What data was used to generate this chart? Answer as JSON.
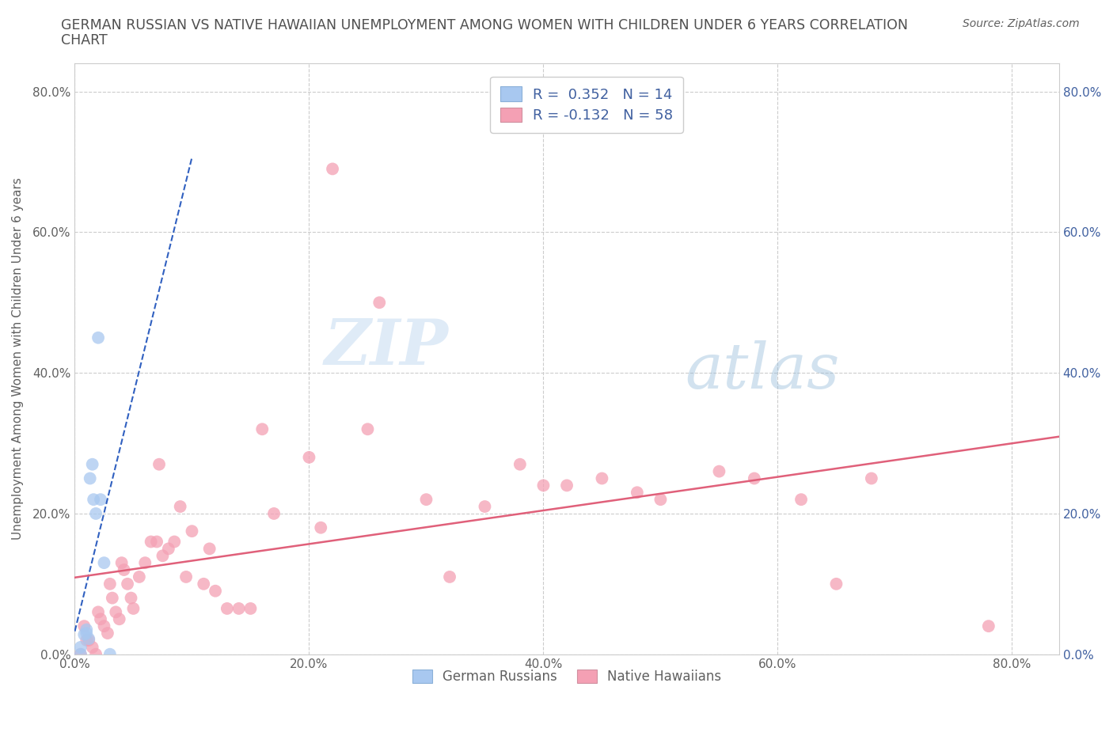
{
  "title_line1": "GERMAN RUSSIAN VS NATIVE HAWAIIAN UNEMPLOYMENT AMONG WOMEN WITH CHILDREN UNDER 6 YEARS CORRELATION",
  "title_line2": "CHART",
  "source": "Source: ZipAtlas.com",
  "ylabel": "Unemployment Among Women with Children Under 6 years",
  "watermark_zip": "ZIP",
  "watermark_atlas": "atlas",
  "german_russian_x": [
    0.005,
    0.005,
    0.008,
    0.01,
    0.01,
    0.012,
    0.013,
    0.015,
    0.016,
    0.018,
    0.02,
    0.022,
    0.025,
    0.03
  ],
  "german_russian_y": [
    0.0,
    0.01,
    0.028,
    0.03,
    0.035,
    0.022,
    0.25,
    0.27,
    0.22,
    0.2,
    0.45,
    0.22,
    0.13,
    0.0
  ],
  "native_hawaiian_x": [
    0.005,
    0.008,
    0.01,
    0.012,
    0.015,
    0.018,
    0.02,
    0.022,
    0.025,
    0.028,
    0.03,
    0.032,
    0.035,
    0.038,
    0.04,
    0.042,
    0.045,
    0.048,
    0.05,
    0.055,
    0.06,
    0.065,
    0.07,
    0.072,
    0.075,
    0.08,
    0.085,
    0.09,
    0.095,
    0.1,
    0.11,
    0.115,
    0.12,
    0.13,
    0.14,
    0.15,
    0.16,
    0.17,
    0.2,
    0.21,
    0.22,
    0.25,
    0.26,
    0.3,
    0.32,
    0.35,
    0.38,
    0.4,
    0.42,
    0.45,
    0.48,
    0.5,
    0.55,
    0.58,
    0.62,
    0.65,
    0.68,
    0.78
  ],
  "native_hawaiian_y": [
    0.0,
    0.04,
    0.02,
    0.02,
    0.01,
    0.0,
    0.06,
    0.05,
    0.04,
    0.03,
    0.1,
    0.08,
    0.06,
    0.05,
    0.13,
    0.12,
    0.1,
    0.08,
    0.065,
    0.11,
    0.13,
    0.16,
    0.16,
    0.27,
    0.14,
    0.15,
    0.16,
    0.21,
    0.11,
    0.175,
    0.1,
    0.15,
    0.09,
    0.065,
    0.065,
    0.065,
    0.32,
    0.2,
    0.28,
    0.18,
    0.69,
    0.32,
    0.5,
    0.22,
    0.11,
    0.21,
    0.27,
    0.24,
    0.24,
    0.25,
    0.23,
    0.22,
    0.26,
    0.25,
    0.22,
    0.1,
    0.25,
    0.04
  ],
  "R_german": 0.352,
  "N_german": 14,
  "R_hawaiian": -0.132,
  "N_hawaiian": 58,
  "german_color": "#a8c8f0",
  "hawaiian_color": "#f4a0b4",
  "german_line_color": "#3060c0",
  "hawaiian_line_color": "#e0607a",
  "xlim": [
    0.0,
    0.84
  ],
  "ylim": [
    0.0,
    0.84
  ],
  "xticks": [
    0.0,
    0.2,
    0.4,
    0.6,
    0.8
  ],
  "yticks": [
    0.0,
    0.2,
    0.4,
    0.6,
    0.8
  ],
  "xticklabels": [
    "0.0%",
    "20.0%",
    "40.0%",
    "60.0%",
    "80.0%"
  ],
  "yticklabels": [
    "0.0%",
    "20.0%",
    "40.0%",
    "60.0%",
    "80.0%"
  ],
  "right_yticklabels": [
    "0.0%",
    "20.0%",
    "40.0%",
    "60.0%",
    "80.0%"
  ],
  "grid_color": "#cccccc",
  "background_color": "#ffffff",
  "title_color": "#505050",
  "axis_label_color": "#4060a0",
  "left_tick_color": "#606060"
}
